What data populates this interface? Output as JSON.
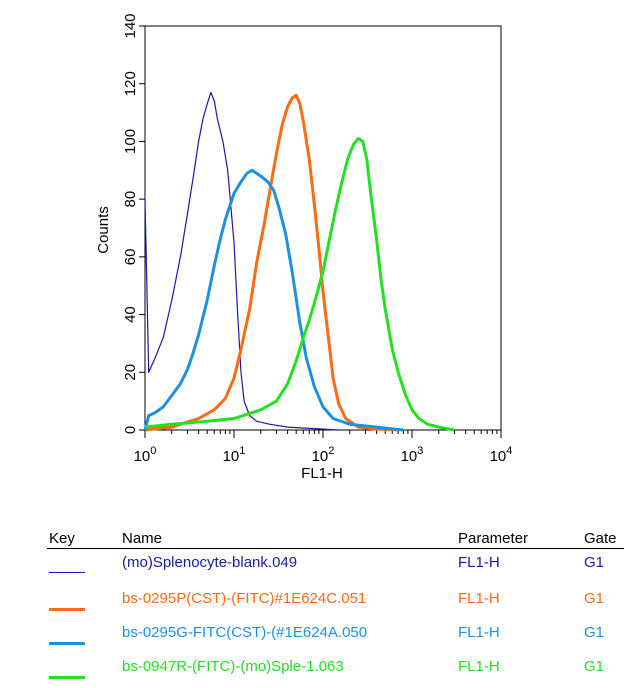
{
  "chart_data": {
    "type": "line",
    "xlabel": "FL1-H",
    "ylabel": "Counts",
    "x_scale": "log",
    "xlim": [
      1,
      10000
    ],
    "ylim": [
      0,
      140
    ],
    "x_ticks": [
      {
        "base": "10",
        "exp": "0",
        "value": 1
      },
      {
        "base": "10",
        "exp": "1",
        "value": 10
      },
      {
        "base": "10",
        "exp": "2",
        "value": 100
      },
      {
        "base": "10",
        "exp": "3",
        "value": 1000
      },
      {
        "base": "10",
        "exp": "4",
        "value": 10000
      }
    ],
    "y_ticks": [
      "0",
      "20",
      "40",
      "60",
      "80",
      "100",
      "120",
      "140"
    ],
    "series": [
      {
        "name": "(mo)Splenocyte-blank.049",
        "color": "#1a1aa6",
        "points": [
          [
            1,
            80
          ],
          [
            1.1,
            20
          ],
          [
            1.3,
            25
          ],
          [
            1.6,
            32
          ],
          [
            2,
            45
          ],
          [
            2.5,
            60
          ],
          [
            3,
            75
          ],
          [
            3.5,
            88
          ],
          [
            4,
            100
          ],
          [
            4.5,
            108
          ],
          [
            5,
            113
          ],
          [
            5.5,
            117
          ],
          [
            6,
            114
          ],
          [
            6.5,
            108
          ],
          [
            7.5,
            100
          ],
          [
            8.5,
            90
          ],
          [
            10,
            65
          ],
          [
            11,
            40
          ],
          [
            12,
            20
          ],
          [
            13,
            10
          ],
          [
            15,
            5
          ],
          [
            18,
            3
          ],
          [
            25,
            2
          ],
          [
            40,
            1
          ],
          [
            80,
            0.5
          ],
          [
            150,
            0
          ]
        ]
      },
      {
        "name": "bs-0295P(CST)-(FITC)#1E624C.051",
        "color": "#ff6a13",
        "points": [
          [
            1,
            0
          ],
          [
            2,
            1
          ],
          [
            4,
            4
          ],
          [
            6,
            7
          ],
          [
            8,
            11
          ],
          [
            10,
            18
          ],
          [
            12,
            28
          ],
          [
            15,
            42
          ],
          [
            18,
            58
          ],
          [
            22,
            72
          ],
          [
            26,
            85
          ],
          [
            30,
            96
          ],
          [
            35,
            106
          ],
          [
            40,
            112
          ],
          [
            45,
            115
          ],
          [
            50,
            116
          ],
          [
            55,
            113
          ],
          [
            60,
            107
          ],
          [
            70,
            94
          ],
          [
            80,
            78
          ],
          [
            90,
            63
          ],
          [
            100,
            48
          ],
          [
            115,
            32
          ],
          [
            130,
            18
          ],
          [
            150,
            9
          ],
          [
            180,
            4
          ],
          [
            250,
            1
          ],
          [
            400,
            0.3
          ],
          [
            700,
            0
          ]
        ]
      },
      {
        "name": "bs-0295G-FITC(CST)-(#1E624A.050",
        "color": "#1e90e0",
        "points": [
          [
            1,
            0
          ],
          [
            1.1,
            5
          ],
          [
            1.3,
            6
          ],
          [
            1.6,
            8
          ],
          [
            2,
            12
          ],
          [
            2.5,
            16
          ],
          [
            3,
            21
          ],
          [
            3.5,
            27
          ],
          [
            4,
            33
          ],
          [
            5,
            45
          ],
          [
            6,
            57
          ],
          [
            7,
            66
          ],
          [
            8,
            73
          ],
          [
            10,
            82
          ],
          [
            12,
            86
          ],
          [
            14,
            89
          ],
          [
            16,
            90
          ],
          [
            20,
            88
          ],
          [
            24,
            86
          ],
          [
            28,
            83
          ],
          [
            32,
            77
          ],
          [
            38,
            68
          ],
          [
            45,
            55
          ],
          [
            55,
            37
          ],
          [
            65,
            25
          ],
          [
            80,
            15
          ],
          [
            100,
            8
          ],
          [
            130,
            4
          ],
          [
            200,
            2
          ],
          [
            400,
            1
          ],
          [
            800,
            0
          ]
        ]
      },
      {
        "name": "bs-0947R-(FITC)-(mo)Sple-1.063",
        "color": "#22e022",
        "points": [
          [
            1,
            1
          ],
          [
            2,
            2
          ],
          [
            5,
            3
          ],
          [
            10,
            4
          ],
          [
            20,
            7
          ],
          [
            30,
            10
          ],
          [
            40,
            16
          ],
          [
            50,
            24
          ],
          [
            60,
            32
          ],
          [
            70,
            38
          ],
          [
            80,
            44
          ],
          [
            100,
            55
          ],
          [
            120,
            67
          ],
          [
            140,
            77
          ],
          [
            160,
            85
          ],
          [
            190,
            94
          ],
          [
            220,
            99
          ],
          [
            250,
            101
          ],
          [
            280,
            100
          ],
          [
            310,
            94
          ],
          [
            350,
            80
          ],
          [
            400,
            66
          ],
          [
            450,
            52
          ],
          [
            500,
            42
          ],
          [
            600,
            28
          ],
          [
            700,
            20
          ],
          [
            850,
            12
          ],
          [
            1000,
            7
          ],
          [
            1200,
            4
          ],
          [
            1500,
            2
          ],
          [
            2000,
            1
          ],
          [
            3000,
            0
          ]
        ]
      }
    ]
  },
  "legend": {
    "headers": {
      "key": "Key",
      "name": "Name",
      "parameter": "Parameter",
      "gate": "Gate"
    },
    "rows": [
      {
        "name": "(mo)Splenocyte-blank.049",
        "parameter": "FL1-H",
        "gate": "G1",
        "color": "#1a1aa6",
        "line_style": "thin"
      },
      {
        "name": "bs-0295P(CST)-(FITC)#1E624C.051",
        "parameter": "FL1-H",
        "gate": "G1",
        "color": "#ff6a13",
        "line_style": "thick"
      },
      {
        "name": "bs-0295G-FITC(CST)-(#1E624A.050",
        "parameter": "FL1-H",
        "gate": "G1",
        "color": "#1e90e0",
        "line_style": "thick"
      },
      {
        "name": "bs-0947R-(FITC)-(mo)Sple-1.063",
        "parameter": "FL1-H",
        "gate": "G1",
        "color": "#22e022",
        "line_style": "thick"
      }
    ]
  }
}
